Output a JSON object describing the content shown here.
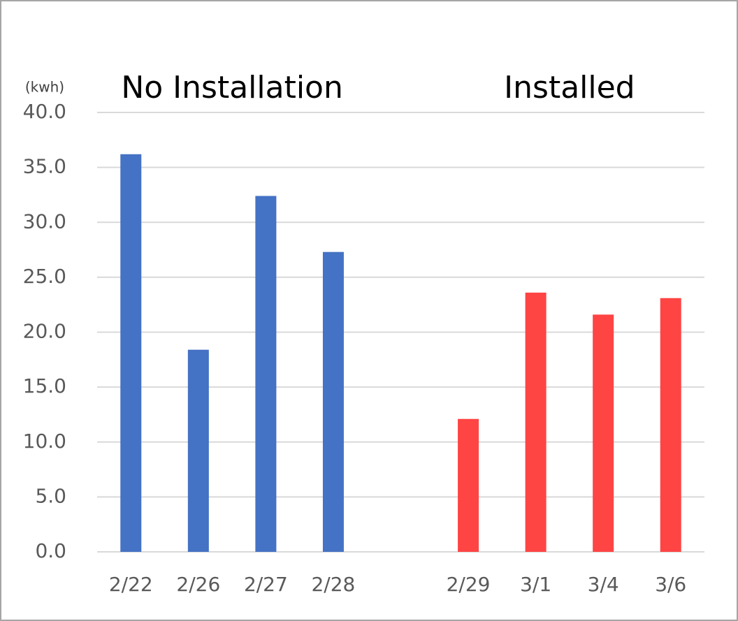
{
  "chart_data": {
    "type": "bar",
    "y_label": "(kwh)",
    "categories": [
      "2/22",
      "2/26",
      "2/27",
      "2/28",
      null,
      "2/29",
      "3/1",
      "3/4",
      "3/6"
    ],
    "series": [
      {
        "name": "No Installation",
        "color": "#4472c4",
        "values": [
          36.2,
          18.4,
          32.4,
          27.3,
          null,
          null,
          null,
          null,
          null
        ]
      },
      {
        "name": "Installed",
        "color": "#ff4444",
        "values": [
          null,
          null,
          null,
          null,
          null,
          12.1,
          23.6,
          21.6,
          23.1
        ]
      }
    ],
    "ylim": [
      0,
      40
    ],
    "yticks": [
      {
        "value": 0,
        "label": "0.0"
      },
      {
        "value": 5,
        "label": "5.0"
      },
      {
        "value": 10,
        "label": "10.0"
      },
      {
        "value": 15,
        "label": "15.0"
      },
      {
        "value": 20,
        "label": "20.0"
      },
      {
        "value": 25,
        "label": "25.0"
      },
      {
        "value": 30,
        "label": "30.0"
      },
      {
        "value": 35,
        "label": "35.0"
      },
      {
        "value": 40,
        "label": "40.0"
      }
    ],
    "grid": true
  }
}
